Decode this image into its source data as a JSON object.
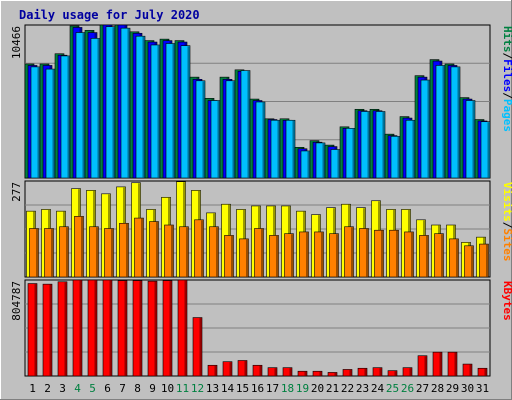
{
  "chart_data": {
    "type": "bar",
    "title": "Daily usage for July 2020",
    "days": [
      "1",
      "2",
      "3",
      "4",
      "5",
      "6",
      "7",
      "8",
      "9",
      "10",
      "11",
      "12",
      "13",
      "14",
      "15",
      "16",
      "17",
      "18",
      "19",
      "20",
      "21",
      "22",
      "23",
      "24",
      "25",
      "26",
      "27",
      "28",
      "29",
      "30",
      "31"
    ],
    "weekend_days": [
      "4",
      "5",
      "11",
      "12",
      "18",
      "19",
      "25",
      "26"
    ],
    "panels": [
      {
        "name": "usage",
        "ymax_label": "10466",
        "ymax": 10466,
        "legend": [
          {
            "text": "Hits",
            "color": "#008040"
          },
          {
            "text": "Files",
            "color": "#0000ff"
          },
          {
            "text": "Pages",
            "color": "#00c0ff"
          }
        ],
        "series": [
          {
            "name": "Hits",
            "color": "#008040",
            "values": [
              7800,
              7800,
              8500,
              10400,
              10100,
              10750,
              10650,
              10000,
              9400,
              9500,
              9400,
              6900,
              5450,
              6900,
              7400,
              5400,
              4050,
              4050,
              2100,
              2550,
              2250,
              3500,
              4700,
              4700,
              3000,
              4200,
              7000,
              8100,
              7800,
              5500,
              4000
            ]
          },
          {
            "name": "Files",
            "color": "#0000ff",
            "values": [
              7700,
              7700,
              8400,
              10300,
              9950,
              10650,
              10550,
              9900,
              9300,
              9400,
              9300,
              6750,
              5300,
              6750,
              7300,
              5300,
              4000,
              3950,
              2000,
              2450,
              2150,
              3400,
              4600,
              4600,
              2900,
              4100,
              6900,
              8000,
              7700,
              5400,
              3900
            ]
          },
          {
            "name": "Pages",
            "color": "#00c0ff",
            "values": [
              7600,
              7450,
              8350,
              9950,
              9550,
              10350,
              10250,
              9700,
              9100,
              9200,
              9050,
              6650,
              5300,
              6650,
              7350,
              5200,
              3950,
              3950,
              1850,
              2400,
              1950,
              3400,
              4550,
              4550,
              2850,
              3950,
              6700,
              7700,
              7600,
              5300,
              3850
            ]
          }
        ]
      },
      {
        "name": "visits",
        "ymax_label": "277",
        "ymax": 277,
        "legend": [
          {
            "text": "Visits",
            "color": "#ffff00"
          },
          {
            "text": "Sites",
            "color": "#ff8000"
          }
        ],
        "series": [
          {
            "name": "Visits",
            "color": "#ffff00",
            "values": [
              190,
              195,
              190,
              255,
              250,
              240,
              260,
              272,
              195,
              230,
              275,
              250,
              185,
              210,
              195,
              205,
              205,
              205,
              190,
              180,
              200,
              210,
              200,
              220,
              195,
              195,
              165,
              150,
              150,
              100,
              115
            ]
          },
          {
            "name": "Sites",
            "color": "#ff8000",
            "values": [
              140,
              140,
              145,
              175,
              145,
              140,
              155,
              170,
              160,
              150,
              145,
              165,
              145,
              120,
              110,
              140,
              120,
              125,
              130,
              130,
              125,
              145,
              140,
              135,
              135,
              130,
              120,
              125,
              110,
              90,
              95
            ]
          }
        ]
      },
      {
        "name": "kbytes",
        "ymax_label": "804787",
        "ymax": 804787,
        "legend": [
          {
            "text": "KBytes",
            "color": "#ff0000"
          }
        ],
        "series": [
          {
            "name": "KBytes",
            "color": "#ff0000",
            "values": [
              775000,
              770000,
              790000,
              812000,
              812000,
              810000,
              800000,
              800000,
              795000,
              800000,
              804787,
              490000,
              90000,
              120000,
              130000,
              90000,
              70000,
              70000,
              40000,
              40000,
              30000,
              55000,
              65000,
              70000,
              45000,
              70000,
              170000,
              200000,
              200000,
              100000,
              65000
            ]
          }
        ]
      }
    ]
  }
}
